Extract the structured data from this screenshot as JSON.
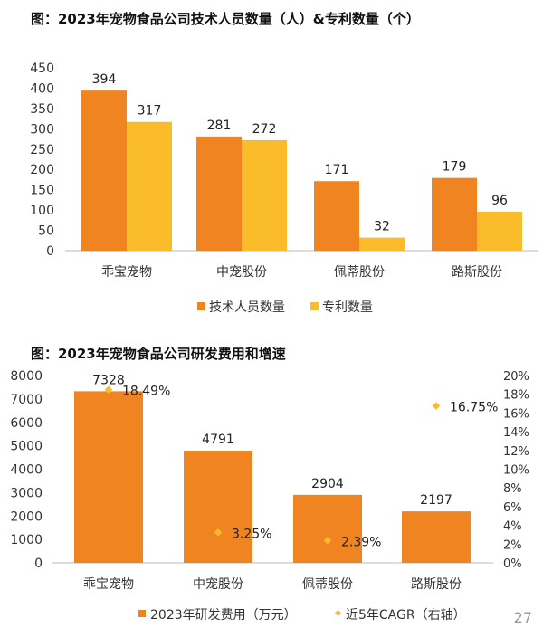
{
  "chart_data": [
    {
      "type": "bar",
      "title": "图：2023年宠物食品公司技术人员数量（人）&专利数量（个）",
      "categories": [
        "乖宝宠物",
        "中宠股份",
        "佩蒂股份",
        "路斯股份"
      ],
      "series": [
        {
          "name": "技术人员数量",
          "values": [
            394,
            281,
            171,
            179
          ],
          "color": "#F08421"
        },
        {
          "name": "专利数量",
          "values": [
            317,
            272,
            32,
            96
          ],
          "color": "#FBBC2C"
        }
      ],
      "ylim": [
        0,
        450
      ],
      "yticks": [
        0,
        50,
        100,
        150,
        200,
        250,
        300,
        350,
        400,
        450
      ],
      "legend": "bottom",
      "grid": false
    },
    {
      "type": "bar+scatter",
      "title": "图：2023年宠物食品公司研发费用和增速",
      "categories": [
        "乖宝宠物",
        "中宠股份",
        "佩蒂股份",
        "路斯股份"
      ],
      "series": [
        {
          "name": "2023年研发费用（万元）",
          "values": [
            7328,
            4791,
            2904,
            2197
          ],
          "color": "#F08421",
          "axis": "left"
        },
        {
          "name": "近5年CAGR（右轴）",
          "values": [
            18.49,
            3.25,
            2.39,
            16.75
          ],
          "labels": [
            "18.49%",
            "3.25%",
            "2.39%",
            "16.75%"
          ],
          "color": "#FBBC2C",
          "axis": "right"
        }
      ],
      "ylim": [
        0,
        8000
      ],
      "yticks": [
        0,
        1000,
        2000,
        3000,
        4000,
        5000,
        6000,
        7000,
        8000
      ],
      "y2lim": [
        0,
        20
      ],
      "y2ticks": [
        "0%",
        "2%",
        "4%",
        "6%",
        "8%",
        "10%",
        "12%",
        "14%",
        "16%",
        "18%",
        "20%"
      ],
      "legend": "bottom",
      "grid": false
    }
  ],
  "page_number": "27"
}
